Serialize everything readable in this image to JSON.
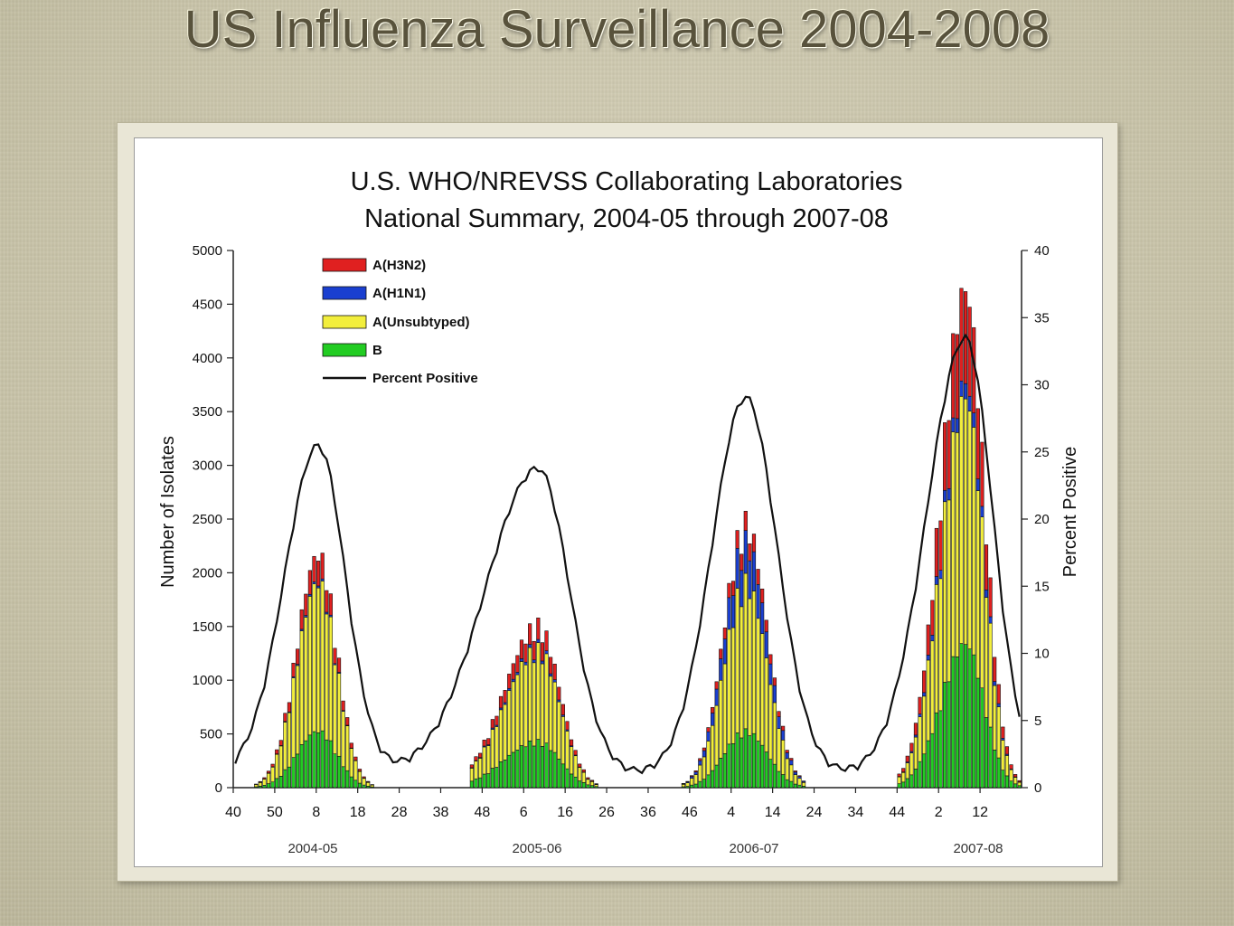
{
  "slide": {
    "title": "US Influenza Surveillance 2004-2008"
  },
  "chart_data": {
    "type": "bar",
    "stacked": true,
    "title": "U.S. WHO/NREVSS Collaborating Laboratories",
    "subtitle": "National Summary, 2004-05 through 2007-08",
    "ylabel": "Number of Isolates",
    "y2label": "Percent Positive",
    "ylim": [
      0,
      5000
    ],
    "y2lim": [
      0,
      40
    ],
    "yticks": [
      "0",
      "500",
      "1000",
      "1500",
      "2000",
      "2500",
      "3000",
      "3500",
      "4000",
      "4500",
      "5000"
    ],
    "y2ticks": [
      "0",
      "5",
      "10",
      "15",
      "20",
      "25",
      "30",
      "35",
      "40"
    ],
    "xticks": [
      "40",
      "50",
      "8",
      "18",
      "28",
      "38",
      "48",
      "6",
      "16",
      "26",
      "36",
      "46",
      "4",
      "14",
      "24",
      "34",
      "44",
      "2",
      "12"
    ],
    "seasons": [
      "2004-05",
      "2005-06",
      "2006-07",
      "2007-08"
    ],
    "legend_position": "top-left",
    "colors": {
      "A(H3N2)": "#e02020",
      "A(H1N1)": "#1a3fd0",
      "A(Unsubtyped)": "#f2ee3c",
      "B": "#22cc22",
      "Percent Positive": "#111111"
    },
    "legend": [
      "A(H3N2)",
      "A(H1N1)",
      "A(Unsubtyped)",
      "B",
      "Percent Positive"
    ],
    "season_peaks": [
      {
        "season": "2004-05",
        "peak_total_isolates": 2250,
        "peak_A_H3N2": 250,
        "peak_A_H1N1": 20,
        "peak_A_unsubtyped": 1450,
        "peak_B": 550,
        "peak_percent_positive": 24.5
      },
      {
        "season": "2005-06",
        "peak_total_isolates": 1550,
        "peak_A_H3N2": 200,
        "peak_A_H1N1": 30,
        "peak_A_unsubtyped": 900,
        "peak_B": 450,
        "peak_percent_positive": 22.8
      },
      {
        "season": "2006-07",
        "peak_total_isolates": 2520,
        "peak_A_H3N2": 180,
        "peak_A_H1N1": 400,
        "peak_A_unsubtyped": 1450,
        "peak_B": 550,
        "peak_percent_positive": 28.1
      },
      {
        "season": "2007-08",
        "peak_total_isolates": 4880,
        "peak_A_H3N2": 900,
        "peak_A_H1N1": 150,
        "peak_A_unsubtyped": 2400,
        "peak_B": 1400,
        "peak_percent_positive": 32.5
      }
    ]
  }
}
